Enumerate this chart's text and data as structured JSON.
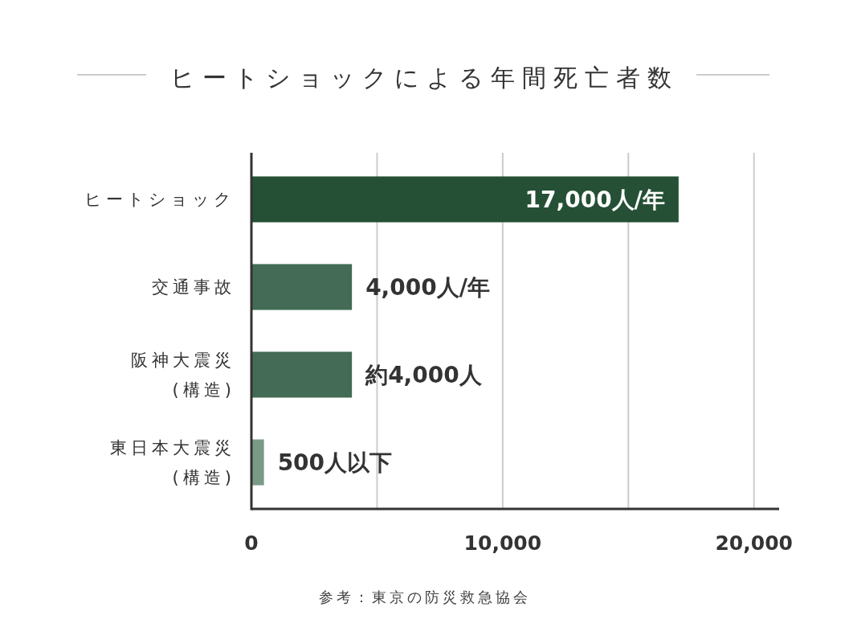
{
  "chart_data": {
    "type": "bar",
    "orientation": "horizontal",
    "title": "ヒートショックによる年間死亡者数",
    "categories": [
      "ヒートショック",
      "交通事故",
      "阪神大震災\n(構造)",
      "東日本大震災\n(構造)"
    ],
    "values": [
      17000,
      4000,
      4000,
      500
    ],
    "colors": [
      "#255035",
      "#436b55",
      "#436b55",
      "#7a9a88"
    ],
    "value_labels": [
      "17,000人/年",
      "4,000人/年",
      "約4,000人",
      "500人以下"
    ],
    "xlim": [
      0,
      21000
    ],
    "xticks": [
      0,
      {
        "value": 5000,
        "label": null
      },
      {
        "value": 10000,
        "label": "10,000"
      },
      {
        "value": 15000,
        "label": null
      },
      {
        "value": 20000,
        "label": "20,000"
      }
    ],
    "grid": "x",
    "annotations": [
      "参考：東京の防災救急協会"
    ]
  }
}
